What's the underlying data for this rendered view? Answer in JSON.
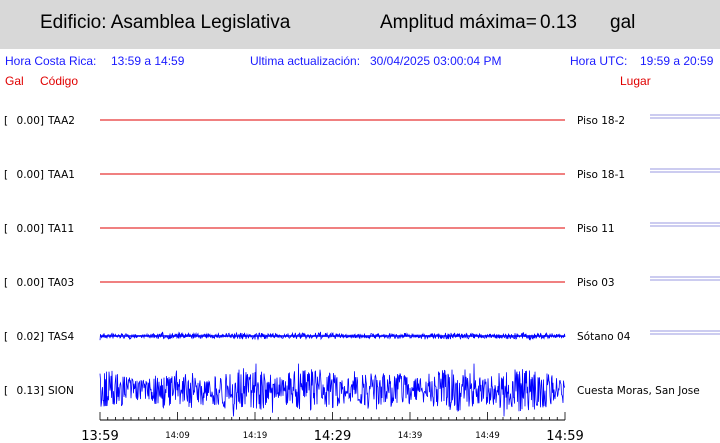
{
  "header": {
    "building": "Edificio: Asamblea Legislativa",
    "amplitude_label": "Amplitud máxima=",
    "amplitude_value": "0.13",
    "amplitude_unit": "gal"
  },
  "info": {
    "local_label": "Hora Costa Rica:",
    "local_range": "13:59 a 14:59",
    "update_label": "Ultima actualización:",
    "update_value": "30/04/2025 03:00:04 PM",
    "utc_label": "Hora UTC:",
    "utc_range": "19:59 a 20:59"
  },
  "columns": {
    "gal": "Gal",
    "code": "Código",
    "place": "Lugar"
  },
  "colors": {
    "flat_trace": "#e00000",
    "active_trace": "#0000ff",
    "info_text": "#1a1aff",
    "header_bg": "#d8d8d8"
  },
  "chart_data": {
    "type": "line",
    "x_range": [
      "13:59",
      "14:59"
    ],
    "x_ticks_major": [
      "13:59",
      "14:29",
      "14:59"
    ],
    "x_ticks_minor": [
      "14:09",
      "14:19",
      "14:39",
      "14:49"
    ],
    "series": [
      {
        "code": "TAA2",
        "gal": "0.00",
        "place": "Piso 18-2",
        "peak": 0.0,
        "active": false
      },
      {
        "code": "TAA1",
        "gal": "0.00",
        "place": "Piso 18-1",
        "peak": 0.0,
        "active": false
      },
      {
        "code": "TA11",
        "gal": "0.00",
        "place": "Piso 11",
        "peak": 0.0,
        "active": false
      },
      {
        "code": "TA03",
        "gal": "0.00",
        "place": "Piso 03",
        "peak": 0.0,
        "active": false
      },
      {
        "code": "TAS4",
        "gal": "0.02",
        "place": "Sótano 04",
        "peak": 0.02,
        "active": true
      },
      {
        "code": "SION",
        "gal": "0.13",
        "place": "Cuesta Moras, San Jose",
        "peak": 0.13,
        "active": true
      }
    ]
  }
}
